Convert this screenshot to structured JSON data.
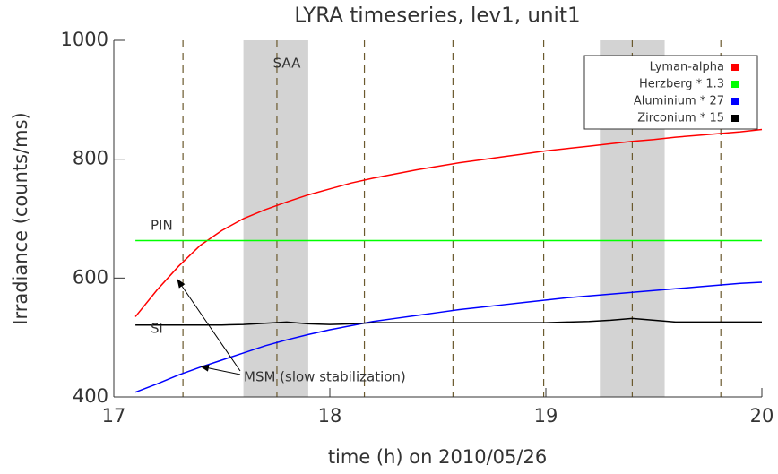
{
  "chart_data": {
    "type": "line",
    "title": "LYRA timeseries, lev1, unit1",
    "xlabel": "time (h) on 2010/05/26",
    "ylabel": "Irradiance (counts/ms)",
    "xlim": [
      17,
      20
    ],
    "ylim": [
      400,
      1000
    ],
    "xticks": [
      17,
      18,
      19,
      20
    ],
    "yticks": [
      400,
      600,
      800,
      1000
    ],
    "events": [
      17.32,
      17.755,
      18.16,
      18.57,
      18.99,
      19.4,
      19.81
    ],
    "shaded_spans": [
      [
        17.6,
        17.9
      ],
      [
        19.25,
        19.55
      ]
    ],
    "annotations": [
      "SAA",
      "PIN",
      "Si",
      "MSM (slow stabilization)"
    ],
    "x": [
      17.1,
      17.2,
      17.3,
      17.4,
      17.5,
      17.6,
      17.7,
      17.8,
      17.9,
      18.0,
      18.1,
      18.2,
      18.3,
      18.4,
      18.5,
      18.6,
      18.7,
      18.8,
      18.9,
      19.0,
      19.1,
      19.2,
      19.3,
      19.4,
      19.5,
      19.6,
      19.7,
      19.8,
      19.9,
      20.0
    ],
    "series": [
      {
        "name": "Lyman-alpha",
        "color": "#ff0000",
        "values": [
          535,
          580,
          620,
          655,
          680,
          700,
          715,
          728,
          740,
          750,
          760,
          768,
          775,
          782,
          788,
          794,
          799,
          804,
          809,
          814,
          818,
          822,
          826,
          830,
          833,
          837,
          840,
          843,
          846,
          850
        ]
      },
      {
        "name": "Herzberg * 1.3",
        "color": "#00ff00",
        "values": [
          663,
          663,
          663,
          663,
          663,
          663,
          663,
          663,
          663,
          663,
          663,
          663,
          663,
          663,
          663,
          663,
          663,
          663,
          663,
          663,
          663,
          663,
          663,
          663,
          663,
          663,
          663,
          663,
          663,
          663
        ]
      },
      {
        "name": "Aluminium * 27",
        "color": "#0000ff",
        "values": [
          408,
          422,
          437,
          450,
          462,
          474,
          486,
          496,
          505,
          513,
          520,
          527,
          532,
          537,
          542,
          547,
          551,
          555,
          559,
          563,
          567,
          570,
          573,
          576,
          579,
          582,
          585,
          588,
          591,
          593
        ]
      },
      {
        "name": "Zirconium * 15",
        "color": "#000000",
        "values": [
          521,
          521,
          521,
          521,
          521,
          522,
          524,
          526,
          523,
          522,
          523,
          525,
          525,
          525,
          525,
          525,
          525,
          525,
          525,
          525,
          526,
          527,
          529,
          532,
          529,
          526,
          526,
          526,
          526,
          526
        ]
      }
    ]
  }
}
